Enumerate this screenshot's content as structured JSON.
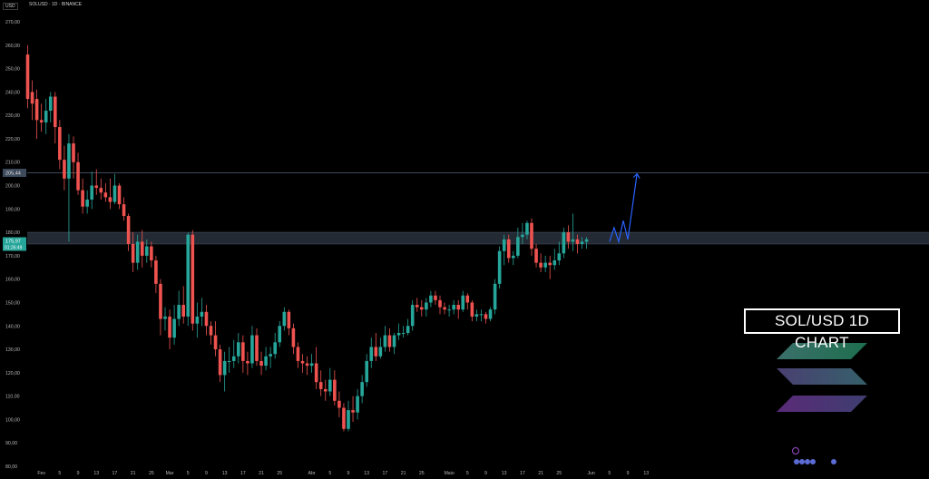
{
  "header": {
    "currency": "USD",
    "symbol_line": "SOLUSD · 1D · BINANCE"
  },
  "overlay_title": "SOL/USD 1D CHART",
  "price_labels": {
    "level": "205,44",
    "last_price": "175,97",
    "countdown": "01:26:49"
  },
  "colors": {
    "up": "#26a69a",
    "down": "#ef5350",
    "zone": "#2c3440",
    "projection": "#2962ff",
    "bg": "#000000"
  },
  "logo_icon": "solana-logo-icon",
  "chart_data": {
    "type": "candlestick",
    "title": "SOL/USD 1D CHART",
    "ylim": [
      80,
      270
    ],
    "y_ticks": [
      "270,00",
      "260,00",
      "250,00",
      "240,00",
      "230,00",
      "220,00",
      "210,00",
      "200,00",
      "190,00",
      "180,00",
      "170,00",
      "160,00",
      "150,00",
      "140,00",
      "130,00",
      "120,00",
      "110,00",
      "100,00",
      "90,00",
      "80,00"
    ],
    "x_ticks": [
      {
        "label": "Fev",
        "day": 3
      },
      {
        "label": "5",
        "day": 7
      },
      {
        "label": "9",
        "day": 11
      },
      {
        "label": "13",
        "day": 15
      },
      {
        "label": "17",
        "day": 19
      },
      {
        "label": "21",
        "day": 23
      },
      {
        "label": "25",
        "day": 27
      },
      {
        "label": "Mar",
        "day": 31
      },
      {
        "label": "5",
        "day": 35
      },
      {
        "label": "9",
        "day": 39
      },
      {
        "label": "13",
        "day": 43
      },
      {
        "label": "17",
        "day": 47
      },
      {
        "label": "21",
        "day": 51
      },
      {
        "label": "25",
        "day": 55
      },
      {
        "label": "Abr",
        "day": 62
      },
      {
        "label": "5",
        "day": 66
      },
      {
        "label": "9",
        "day": 70
      },
      {
        "label": "13",
        "day": 74
      },
      {
        "label": "17",
        "day": 78
      },
      {
        "label": "21",
        "day": 82
      },
      {
        "label": "25",
        "day": 86
      },
      {
        "label": "Maio",
        "day": 92
      },
      {
        "label": "5",
        "day": 96
      },
      {
        "label": "9",
        "day": 100
      },
      {
        "label": "13",
        "day": 104
      },
      {
        "label": "17",
        "day": 108
      },
      {
        "label": "21",
        "day": 112
      },
      {
        "label": "25",
        "day": 116
      },
      {
        "label": "Jun",
        "day": 123
      },
      {
        "label": "5",
        "day": 127
      },
      {
        "label": "9",
        "day": 131
      },
      {
        "label": "13",
        "day": 135
      }
    ],
    "candles": [
      [
        256,
        237,
        260,
        233
      ],
      [
        240,
        235,
        245,
        228
      ],
      [
        237,
        228,
        241,
        220
      ],
      [
        228,
        227,
        235,
        223
      ],
      [
        227,
        232,
        237,
        222
      ],
      [
        232,
        238,
        240,
        227
      ],
      [
        238,
        225,
        240,
        218
      ],
      [
        225,
        211,
        228,
        207
      ],
      [
        211,
        203,
        217,
        198
      ],
      [
        203,
        218,
        222,
        176
      ],
      [
        218,
        210,
        221,
        203
      ],
      [
        210,
        198,
        214,
        196
      ],
      [
        198,
        191,
        203,
        188
      ],
      [
        191,
        194,
        198,
        188
      ],
      [
        194,
        200,
        206,
        190
      ],
      [
        200,
        199,
        207,
        196
      ],
      [
        199,
        197,
        203,
        194
      ],
      [
        197,
        195,
        201,
        193
      ],
      [
        195,
        193,
        203,
        190
      ],
      [
        193,
        200,
        205,
        192
      ],
      [
        200,
        192,
        201,
        190
      ],
      [
        192,
        187,
        195,
        185
      ],
      [
        187,
        175,
        188,
        172
      ],
      [
        175,
        167,
        180,
        163
      ],
      [
        167,
        176,
        179,
        164
      ],
      [
        176,
        170,
        181,
        165
      ],
      [
        170,
        174,
        177,
        167
      ],
      [
        174,
        168,
        176,
        165
      ],
      [
        168,
        158,
        170,
        154
      ],
      [
        158,
        143,
        160,
        136
      ],
      [
        143,
        144,
        148,
        138
      ],
      [
        144,
        135,
        147,
        130
      ],
      [
        135,
        143,
        149,
        132
      ],
      [
        143,
        149,
        155,
        140
      ],
      [
        149,
        144,
        157,
        141
      ],
      [
        144,
        179,
        180,
        140
      ],
      [
        179,
        141,
        181,
        138
      ],
      [
        141,
        144,
        150,
        135
      ],
      [
        144,
        146,
        152,
        140
      ],
      [
        146,
        140,
        149,
        136
      ],
      [
        140,
        136,
        142,
        132
      ],
      [
        136,
        130,
        142,
        127
      ],
      [
        130,
        119,
        132,
        116
      ],
      [
        119,
        125,
        129,
        112
      ],
      [
        125,
        125,
        131,
        120
      ],
      [
        125,
        127,
        134,
        122
      ],
      [
        127,
        133,
        137,
        124
      ],
      [
        133,
        125,
        136,
        120
      ],
      [
        125,
        124,
        129,
        119
      ],
      [
        124,
        136,
        140,
        122
      ],
      [
        136,
        125,
        139,
        123
      ],
      [
        125,
        123,
        129,
        119
      ],
      [
        123,
        127,
        131,
        121
      ],
      [
        127,
        128,
        131,
        122
      ],
      [
        128,
        133,
        137,
        126
      ],
      [
        133,
        140,
        142,
        131
      ],
      [
        140,
        146,
        148,
        138
      ],
      [
        146,
        139,
        147,
        136
      ],
      [
        139,
        131,
        141,
        128
      ],
      [
        131,
        125,
        133,
        122
      ],
      [
        125,
        124,
        128,
        120
      ],
      [
        124,
        123,
        127,
        119
      ],
      [
        123,
        124,
        128,
        120
      ],
      [
        124,
        116,
        131,
        113
      ],
      [
        116,
        113,
        121,
        110
      ],
      [
        113,
        112,
        117,
        108
      ],
      [
        112,
        117,
        122,
        110
      ],
      [
        117,
        108,
        121,
        106
      ],
      [
        108,
        105,
        112,
        101
      ],
      [
        105,
        96,
        107,
        95
      ],
      [
        96,
        104,
        108,
        95
      ],
      [
        104,
        103,
        110,
        99
      ],
      [
        103,
        110,
        113,
        100
      ],
      [
        110,
        116,
        119,
        107
      ],
      [
        116,
        125,
        128,
        114
      ],
      [
        125,
        131,
        135,
        122
      ],
      [
        131,
        127,
        137,
        125
      ],
      [
        127,
        131,
        135,
        126
      ],
      [
        131,
        136,
        140,
        129
      ],
      [
        136,
        131,
        139,
        129
      ],
      [
        131,
        136,
        137,
        128
      ],
      [
        136,
        137,
        141,
        134
      ],
      [
        137,
        137,
        140,
        135
      ],
      [
        137,
        140,
        143,
        136
      ],
      [
        140,
        149,
        151,
        138
      ],
      [
        149,
        148,
        152,
        146
      ],
      [
        148,
        147,
        151,
        144
      ],
      [
        147,
        150,
        152,
        144
      ],
      [
        150,
        153,
        155,
        148
      ],
      [
        153,
        151,
        155,
        149
      ],
      [
        151,
        148,
        153,
        145
      ],
      [
        148,
        147,
        150,
        145
      ],
      [
        147,
        147,
        149,
        144
      ],
      [
        147,
        149,
        151,
        145
      ],
      [
        149,
        147,
        151,
        143
      ],
      [
        147,
        153,
        155,
        146
      ],
      [
        153,
        150,
        154,
        147
      ],
      [
        150,
        144,
        151,
        142
      ],
      [
        144,
        145,
        147,
        142
      ],
      [
        145,
        145,
        147,
        142
      ],
      [
        145,
        143,
        146,
        141
      ],
      [
        143,
        147,
        148,
        142
      ],
      [
        147,
        158,
        160,
        145
      ],
      [
        158,
        172,
        174,
        156
      ],
      [
        172,
        177,
        179,
        166
      ],
      [
        177,
        169,
        179,
        167
      ],
      [
        169,
        170,
        172,
        166
      ],
      [
        170,
        178,
        182,
        169
      ],
      [
        178,
        179,
        184,
        175
      ],
      [
        179,
        184,
        185,
        177
      ],
      [
        184,
        173,
        186,
        170
      ],
      [
        173,
        167,
        175,
        165
      ],
      [
        167,
        165,
        171,
        163
      ],
      [
        165,
        167,
        170,
        163
      ],
      [
        167,
        166,
        170,
        160
      ],
      [
        166,
        168,
        173,
        164
      ],
      [
        168,
        171,
        176,
        166
      ],
      [
        171,
        180,
        182,
        169
      ],
      [
        180,
        176,
        183,
        173
      ],
      [
        176,
        177,
        188,
        172
      ],
      [
        177,
        175,
        179,
        171
      ],
      [
        175,
        176,
        178,
        173
      ],
      [
        176,
        177,
        178,
        173
      ]
    ],
    "support_zone": [
      175,
      180
    ],
    "resistance_level": 205.44,
    "last_price": 175.97,
    "projection": [
      [
        127,
        176
      ],
      [
        128,
        182
      ],
      [
        129,
        176
      ],
      [
        130,
        185
      ],
      [
        131,
        177
      ],
      [
        133,
        205
      ]
    ]
  }
}
